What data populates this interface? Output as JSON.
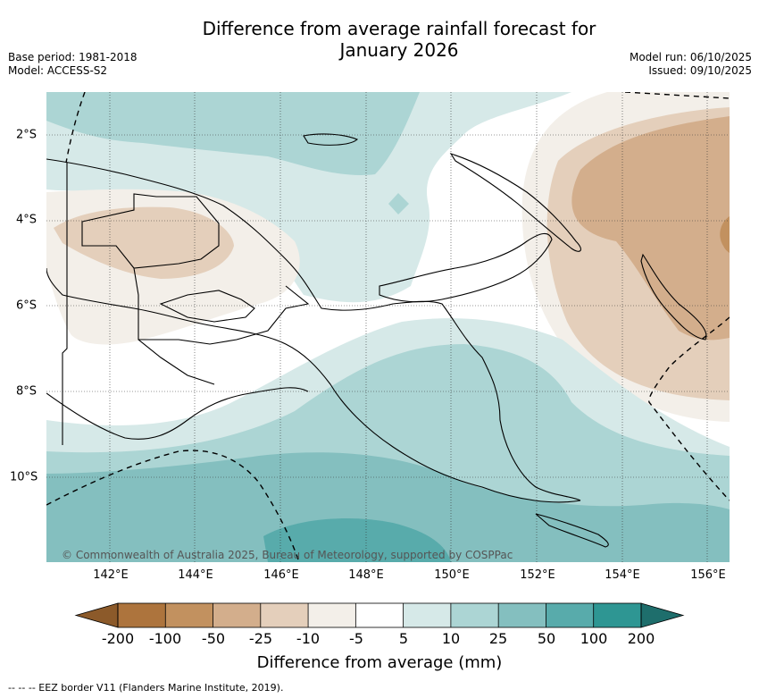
{
  "header": {
    "title_line1": "Difference from average rainfall forecast for",
    "title_line2": "January 2026",
    "base_period": "Base period: 1981-2018",
    "model": "Model: ACCESS-S2",
    "model_run": "Model run: 06/10/2025",
    "issued": "Issued: 09/10/2025"
  },
  "map": {
    "copyright": "© Commonwealth of Australia 2025, Bureau of Meteorology, supported by COSPPac",
    "lon_labels": [
      "142°E",
      "144°E",
      "146°E",
      "148°E",
      "150°E",
      "152°E",
      "154°E",
      "156°E"
    ],
    "lat_labels": [
      "2°S",
      "4°S",
      "6°S",
      "8°S",
      "10°S"
    ]
  },
  "colorbar": {
    "title": "Difference from average (mm)",
    "tick_labels": [
      "-200",
      "-100",
      "-50",
      "-25",
      "-10",
      "-5",
      "5",
      "10",
      "25",
      "50",
      "100",
      "200"
    ],
    "colors": [
      "#8c5a2a",
      "#ad743d",
      "#c2915f",
      "#d3ae8c",
      "#e4cfbb",
      "#f3efe9",
      "#ffffff",
      "#d6e9e8",
      "#acd5d4",
      "#84bfbf",
      "#58abab",
      "#2e9693",
      "#1e6e6c"
    ]
  },
  "footnote": "-- -- -- EEZ border V11 (Flanders Marine Institute, 2019)."
}
